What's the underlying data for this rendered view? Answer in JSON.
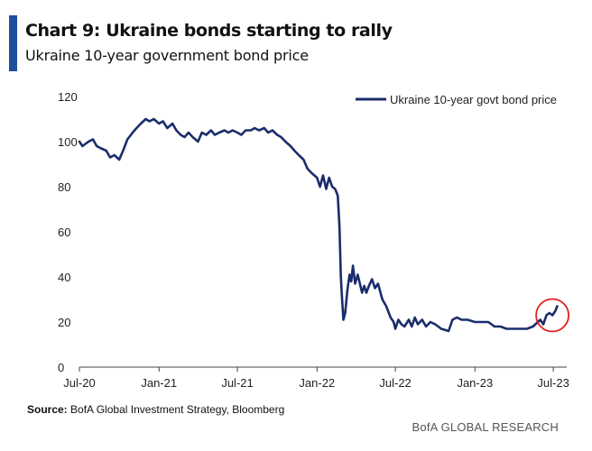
{
  "title": "Chart 9: Ukraine bonds starting to rally",
  "subtitle": "Ukraine 10-year government bond price",
  "source_label": "Source:",
  "source_text": "BofA Global Investment Strategy, Bloomberg",
  "credit": "BofA GLOBAL RESEARCH",
  "colors": {
    "accent": "#1f4e9e",
    "line": "#1a2d6b",
    "highlight_circle": "#e02020"
  },
  "chart_data": {
    "type": "line",
    "title": "Chart 9: Ukraine bonds starting to rally",
    "subtitle": "Ukraine 10-year government bond price",
    "xlabel": "",
    "ylabel": "",
    "ylim": [
      0,
      120
    ],
    "yticks": [
      0,
      20,
      40,
      60,
      80,
      100,
      120
    ],
    "xlim": [
      "2020-07-01",
      "2023-08-01"
    ],
    "xticks": [
      {
        "date": "2020-07-01",
        "label": "Jul-20"
      },
      {
        "date": "2021-01-01",
        "label": "Jan-21"
      },
      {
        "date": "2021-07-01",
        "label": "Jul-21"
      },
      {
        "date": "2022-01-01",
        "label": "Jan-22"
      },
      {
        "date": "2022-07-01",
        "label": "Jul-22"
      },
      {
        "date": "2023-01-01",
        "label": "Jan-23"
      },
      {
        "date": "2023-07-01",
        "label": "Jul-23"
      }
    ],
    "grid": false,
    "legend_position": "top-right",
    "annotation": "circle highlighting recent rally (Jun-23 to Jul-23)",
    "series": [
      {
        "name": "Ukraine 10-year govt bond price",
        "points": [
          [
            "2020-07-01",
            100
          ],
          [
            "2020-07-08",
            98
          ],
          [
            "2020-07-15",
            99
          ],
          [
            "2020-07-22",
            100
          ],
          [
            "2020-08-01",
            101
          ],
          [
            "2020-08-10",
            98
          ],
          [
            "2020-08-20",
            97
          ],
          [
            "2020-09-01",
            96
          ],
          [
            "2020-09-10",
            93
          ],
          [
            "2020-09-20",
            94
          ],
          [
            "2020-10-01",
            92
          ],
          [
            "2020-10-10",
            96
          ],
          [
            "2020-10-20",
            101
          ],
          [
            "2020-11-01",
            104
          ],
          [
            "2020-11-10",
            106
          ],
          [
            "2020-11-20",
            108
          ],
          [
            "2020-12-01",
            110
          ],
          [
            "2020-12-10",
            109
          ],
          [
            "2020-12-20",
            110
          ],
          [
            "2021-01-01",
            108
          ],
          [
            "2021-01-10",
            109
          ],
          [
            "2021-01-20",
            106
          ],
          [
            "2021-02-01",
            108
          ],
          [
            "2021-02-10",
            105
          ],
          [
            "2021-02-20",
            103
          ],
          [
            "2021-03-01",
            102
          ],
          [
            "2021-03-10",
            104
          ],
          [
            "2021-03-20",
            102
          ],
          [
            "2021-04-01",
            100
          ],
          [
            "2021-04-10",
            104
          ],
          [
            "2021-04-20",
            103
          ],
          [
            "2021-05-01",
            105
          ],
          [
            "2021-05-10",
            103
          ],
          [
            "2021-05-20",
            104
          ],
          [
            "2021-06-01",
            105
          ],
          [
            "2021-06-10",
            104
          ],
          [
            "2021-06-20",
            105
          ],
          [
            "2021-07-01",
            104
          ],
          [
            "2021-07-10",
            103
          ],
          [
            "2021-07-20",
            105
          ],
          [
            "2021-08-01",
            105
          ],
          [
            "2021-08-10",
            106
          ],
          [
            "2021-08-20",
            105
          ],
          [
            "2021-09-01",
            106
          ],
          [
            "2021-09-10",
            104
          ],
          [
            "2021-09-20",
            105
          ],
          [
            "2021-10-01",
            103
          ],
          [
            "2021-10-10",
            102
          ],
          [
            "2021-10-20",
            100
          ],
          [
            "2021-11-01",
            98
          ],
          [
            "2021-11-10",
            96
          ],
          [
            "2021-11-20",
            94
          ],
          [
            "2021-12-01",
            92
          ],
          [
            "2021-12-10",
            88
          ],
          [
            "2021-12-20",
            86
          ],
          [
            "2022-01-01",
            84
          ],
          [
            "2022-01-08",
            80
          ],
          [
            "2022-01-15",
            85
          ],
          [
            "2022-01-22",
            79
          ],
          [
            "2022-01-29",
            84
          ],
          [
            "2022-02-05",
            80
          ],
          [
            "2022-02-12",
            79
          ],
          [
            "2022-02-18",
            76
          ],
          [
            "2022-02-22",
            62
          ],
          [
            "2022-02-25",
            40
          ],
          [
            "2022-02-28",
            30
          ],
          [
            "2022-03-03",
            21
          ],
          [
            "2022-03-07",
            24
          ],
          [
            "2022-03-12",
            34
          ],
          [
            "2022-03-17",
            41
          ],
          [
            "2022-03-21",
            38
          ],
          [
            "2022-03-25",
            45
          ],
          [
            "2022-03-30",
            37
          ],
          [
            "2022-04-05",
            41
          ],
          [
            "2022-04-10",
            37
          ],
          [
            "2022-04-15",
            33
          ],
          [
            "2022-04-20",
            36
          ],
          [
            "2022-04-25",
            33
          ],
          [
            "2022-05-01",
            36
          ],
          [
            "2022-05-08",
            39
          ],
          [
            "2022-05-15",
            35
          ],
          [
            "2022-05-22",
            37
          ],
          [
            "2022-06-01",
            30
          ],
          [
            "2022-06-10",
            27
          ],
          [
            "2022-06-20",
            22
          ],
          [
            "2022-06-27",
            20
          ],
          [
            "2022-07-01",
            17
          ],
          [
            "2022-07-08",
            21
          ],
          [
            "2022-07-15",
            19
          ],
          [
            "2022-07-22",
            18
          ],
          [
            "2022-08-01",
            21
          ],
          [
            "2022-08-08",
            18
          ],
          [
            "2022-08-15",
            22
          ],
          [
            "2022-08-22",
            19
          ],
          [
            "2022-09-01",
            21
          ],
          [
            "2022-09-10",
            18
          ],
          [
            "2022-09-20",
            20
          ],
          [
            "2022-10-01",
            19
          ],
          [
            "2022-10-15",
            17
          ],
          [
            "2022-11-01",
            16
          ],
          [
            "2022-11-10",
            21
          ],
          [
            "2022-11-20",
            22
          ],
          [
            "2022-12-01",
            21
          ],
          [
            "2022-12-15",
            21
          ],
          [
            "2023-01-01",
            20
          ],
          [
            "2023-01-15",
            20
          ],
          [
            "2023-02-01",
            20
          ],
          [
            "2023-02-15",
            18
          ],
          [
            "2023-03-01",
            18
          ],
          [
            "2023-03-15",
            17
          ],
          [
            "2023-04-01",
            17
          ],
          [
            "2023-04-15",
            17
          ],
          [
            "2023-05-01",
            17
          ],
          [
            "2023-05-15",
            18
          ],
          [
            "2023-06-01",
            21
          ],
          [
            "2023-06-08",
            19
          ],
          [
            "2023-06-15",
            23
          ],
          [
            "2023-06-22",
            24
          ],
          [
            "2023-06-29",
            23
          ],
          [
            "2023-07-06",
            25
          ],
          [
            "2023-07-10",
            27
          ]
        ]
      }
    ]
  }
}
